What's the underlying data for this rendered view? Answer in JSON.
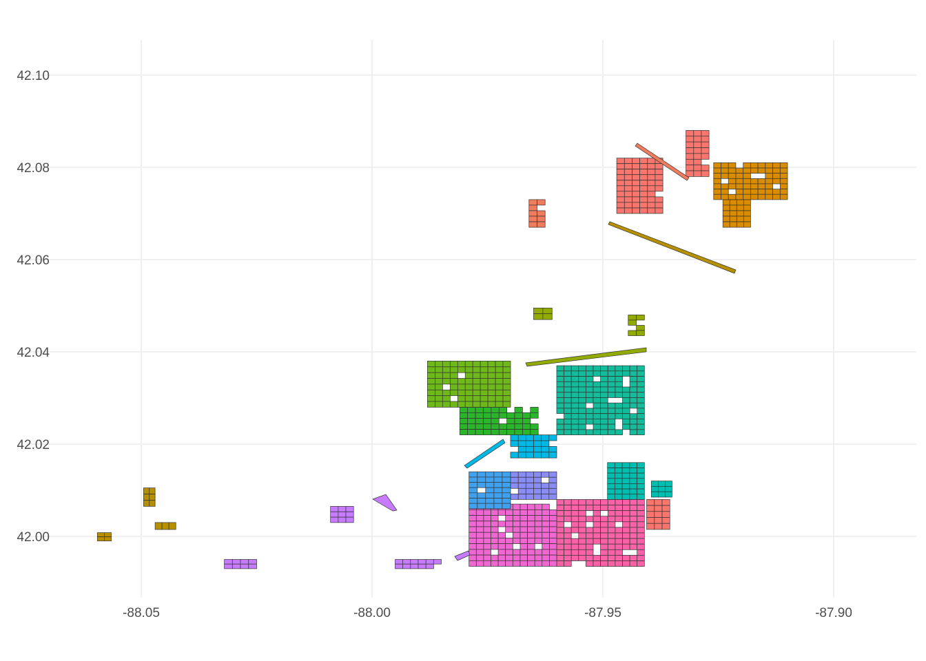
{
  "chart_data": {
    "type": "map",
    "title": "",
    "xlabel": "",
    "ylabel": "",
    "xlim": [
      -88.065,
      -87.882
    ],
    "ylim": [
      41.9925,
      42.108
    ],
    "x_ticks": [
      {
        "value": -88.05,
        "label": "-88.05"
      },
      {
        "value": -88.0,
        "label": "-88.00"
      },
      {
        "value": -87.95,
        "label": "-87.95"
      },
      {
        "value": -87.9,
        "label": "-87.90"
      }
    ],
    "y_ticks": [
      {
        "value": 42.0,
        "label": "42.00"
      },
      {
        "value": 42.02,
        "label": "42.02"
      },
      {
        "value": 42.04,
        "label": "42.04"
      },
      {
        "value": 42.06,
        "label": "42.06"
      },
      {
        "value": 42.08,
        "label": "42.08"
      },
      {
        "value": 42.1,
        "label": "42.10"
      }
    ],
    "grid": true,
    "legend": "none",
    "colors": {
      "salmon": "#f07c5e",
      "orange": "#d98c00",
      "gold": "#b79000",
      "olive": "#93aa00",
      "green_light": "#6fb81a",
      "green": "#2bb52b",
      "teal": "#13bc9a",
      "teal_dark": "#00bfb0",
      "cyan": "#00b8e5",
      "blue": "#3fa2f0",
      "periwinkle": "#8a8cf5",
      "violet": "#c77cff",
      "magenta": "#ef67d0",
      "pink": "#fb61a7",
      "rose": "#f8766d"
    },
    "regions": [
      {
        "color": "rose",
        "x": [
          -87.947,
          -87.937
        ],
        "y": [
          42.07,
          42.082
        ]
      },
      {
        "color": "rose",
        "x": [
          -87.932,
          -87.927
        ],
        "y": [
          42.078,
          42.088
        ]
      },
      {
        "color": "salmon",
        "x": [
          -87.966,
          -87.9625
        ],
        "y": [
          42.067,
          42.073
        ]
      },
      {
        "color": "orange",
        "x": [
          -87.926,
          -87.91
        ],
        "y": [
          42.073,
          42.081
        ]
      },
      {
        "color": "orange",
        "x": [
          -87.924,
          -87.918
        ],
        "y": [
          42.067,
          42.073
        ]
      },
      {
        "color": "gold",
        "x": [
          -88.0495,
          -88.047
        ],
        "y": [
          42.0065,
          42.0105
        ]
      },
      {
        "color": "gold",
        "x": [
          -88.047,
          -88.0425
        ],
        "y": [
          42.0015,
          42.003
        ]
      },
      {
        "color": "gold",
        "x": [
          -88.0595,
          -88.0565
        ],
        "y": [
          41.999,
          42.0008
        ]
      },
      {
        "color": "olive",
        "x": [
          -87.965,
          -87.961
        ],
        "y": [
          42.047,
          42.0495
        ]
      },
      {
        "color": "olive",
        "x": [
          -87.9445,
          -87.941
        ],
        "y": [
          42.0435,
          42.048
        ]
      },
      {
        "color": "green_light",
        "x": [
          -87.988,
          -87.97
        ],
        "y": [
          42.028,
          42.038
        ]
      },
      {
        "color": "green",
        "x": [
          -87.981,
          -87.964
        ],
        "y": [
          42.022,
          42.028
        ]
      },
      {
        "color": "teal",
        "x": [
          -87.96,
          -87.941
        ],
        "y": [
          42.022,
          42.037
        ]
      },
      {
        "color": "cyan",
        "x": [
          -87.97,
          -87.96
        ],
        "y": [
          42.017,
          42.022
        ]
      },
      {
        "color": "teal_dark",
        "x": [
          -87.949,
          -87.941
        ],
        "y": [
          42.008,
          42.016
        ]
      },
      {
        "color": "teal_dark",
        "x": [
          -87.9395,
          -87.935
        ],
        "y": [
          42.0085,
          42.012
        ]
      },
      {
        "color": "blue",
        "x": [
          -87.979,
          -87.97
        ],
        "y": [
          42.006,
          42.014
        ]
      },
      {
        "color": "periwinkle",
        "x": [
          -87.97,
          -87.96
        ],
        "y": [
          42.008,
          42.014
        ]
      },
      {
        "color": "violet",
        "x": [
          -88.009,
          -88.004
        ],
        "y": [
          42.003,
          42.0065
        ]
      },
      {
        "color": "violet",
        "x": [
          -88.032,
          -88.025
        ],
        "y": [
          41.993,
          41.995
        ]
      },
      {
        "color": "violet",
        "x": [
          -87.995,
          -87.985
        ],
        "y": [
          41.993,
          41.995
        ]
      },
      {
        "color": "magenta",
        "x": [
          -87.979,
          -87.96
        ],
        "y": [
          41.9935,
          42.007
        ]
      },
      {
        "color": "pink",
        "x": [
          -87.96,
          -87.941
        ],
        "y": [
          41.9935,
          42.008
        ]
      },
      {
        "color": "rose",
        "x": [
          -87.9405,
          -87.9355
        ],
        "y": [
          42.0015,
          42.008
        ]
      }
    ]
  }
}
